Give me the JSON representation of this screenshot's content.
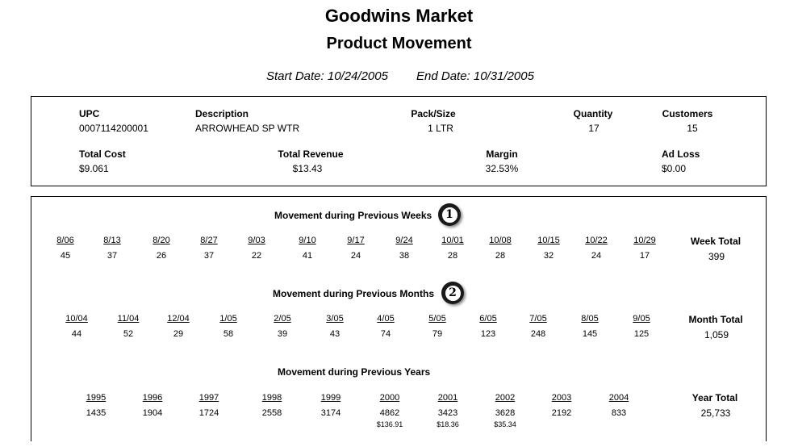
{
  "header": {
    "store": "Goodwins Market",
    "report": "Product Movement",
    "start_date": "Start Date: 10/24/2005",
    "end_date": "End Date: 10/31/2005"
  },
  "product": {
    "upc_label": "UPC",
    "upc": "0007114200001",
    "desc_label": "Description",
    "desc": "ARROWHEAD SP WTR",
    "pack_label": "Pack/Size",
    "pack": "1 LTR",
    "qty_label": "Quantity",
    "qty": "17",
    "cust_label": "Customers",
    "cust": "15",
    "cost_label": "Total Cost",
    "cost": "$9.061",
    "rev_label": "Total Revenue",
    "rev": "$13.43",
    "margin_label": "Margin",
    "margin": "32.53%",
    "adloss_label": "Ad Loss",
    "adloss": "$0.00"
  },
  "weeks": {
    "title": "Movement during Previous Weeks",
    "badge": "1",
    "headers": [
      "8/06",
      "8/13",
      "8/20",
      "8/27",
      "9/03",
      "9/10",
      "9/17",
      "9/24",
      "10/01",
      "10/08",
      "10/15",
      "10/22",
      "10/29"
    ],
    "values": [
      "45",
      "37",
      "26",
      "37",
      "22",
      "41",
      "24",
      "38",
      "28",
      "28",
      "32",
      "24",
      "17"
    ],
    "total_label": "Week Total",
    "total": "399"
  },
  "months": {
    "title": "Movement during Previous Months",
    "badge": "2",
    "headers": [
      "10/04",
      "11/04",
      "12/04",
      "1/05",
      "2/05",
      "3/05",
      "4/05",
      "5/05",
      "6/05",
      "7/05",
      "8/05",
      "9/05"
    ],
    "values": [
      "44",
      "52",
      "29",
      "58",
      "39",
      "43",
      "74",
      "79",
      "123",
      "248",
      "145",
      "125"
    ],
    "total_label": "Month Total",
    "total": "1,059"
  },
  "years": {
    "title": "Movement during Previous Years",
    "headers": [
      "1995",
      "1996",
      "1997",
      "1998",
      "1999",
      "2000",
      "2001",
      "2002",
      "2003",
      "2004"
    ],
    "values": [
      "1435",
      "1904",
      "1724",
      "2558",
      "3174",
      "4862",
      "3423",
      "3628",
      "2192",
      "833"
    ],
    "sub": [
      "",
      "",
      "",
      "",
      "",
      "$136.91",
      "$18.36",
      "$35.34",
      "",
      ""
    ],
    "total_label": "Year Total",
    "total": "25,733"
  }
}
